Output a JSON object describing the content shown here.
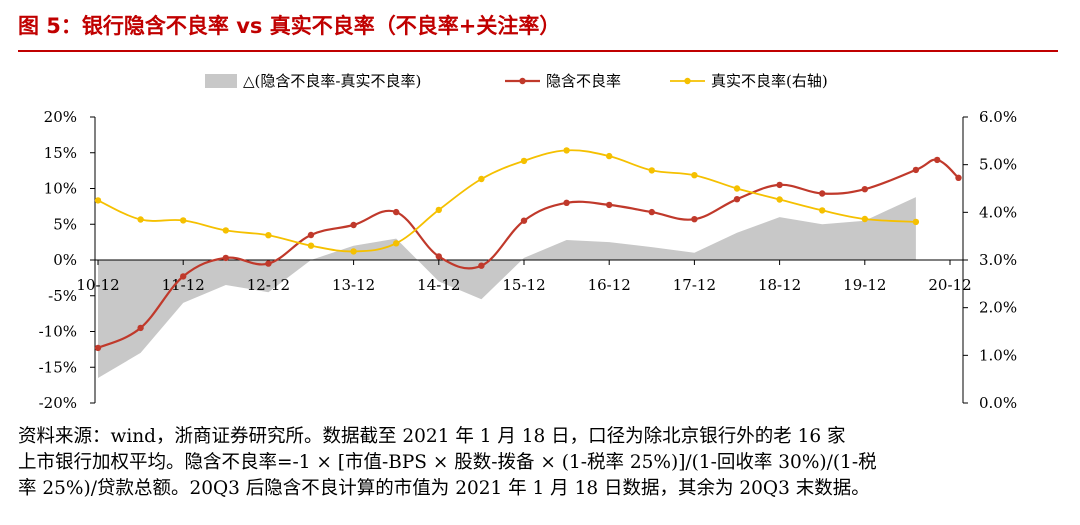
{
  "title": "图 5：银行隐含不良率 vs 真实不良率（不良率+关注率）",
  "source_lines": [
    "资料来源：wind，浙商证券研究所。数据截至 2021 年 1 月 18 日，口径为除北京银行外的老 16 家",
    "上市银行加权平均。隐含不良率=-1 × [市值-BPS × 股数-拨备 × (1-税率 25%)]/(1-回收率 30%)/(1-税",
    "率 25%)/贷款总额。20Q3 后隐含不良计算的市值为 2021 年 1 月 18 日数据，其余为 20Q3 末数据。"
  ],
  "chart_data": {
    "type": "line",
    "categories": [
      "10-12",
      "11-12",
      "12-12",
      "13-12",
      "14-12",
      "15-12",
      "16-12",
      "17-12",
      "18-12",
      "19-12",
      "20-12"
    ],
    "left_axis": {
      "ticks": [
        "20%",
        "15%",
        "10%",
        "5%",
        "0%",
        "-5%",
        "-10%",
        "-15%",
        "-20%"
      ],
      "range": [
        -20,
        20
      ]
    },
    "right_axis": {
      "ticks": [
        "6.0%",
        "5.0%",
        "4.0%",
        "3.0%",
        "2.0%",
        "1.0%",
        "0.0%"
      ],
      "range": [
        0,
        6
      ]
    },
    "series": [
      {
        "name": "△(隐含不良率-真实不良率)",
        "kind": "area",
        "axis": "left",
        "color": "#c8c8c8",
        "points": [
          [
            0,
            -16.5
          ],
          [
            0.5,
            -13
          ],
          [
            1,
            -6
          ],
          [
            1.5,
            -3.5
          ],
          [
            2,
            -4.5
          ],
          [
            2.5,
            0
          ],
          [
            3,
            2
          ],
          [
            3.5,
            3
          ],
          [
            4,
            -3
          ],
          [
            4.5,
            -5.5
          ],
          [
            5,
            0.3
          ],
          [
            5.5,
            2.8
          ],
          [
            6,
            2.5
          ],
          [
            6.5,
            1.8
          ],
          [
            7,
            1.0
          ],
          [
            7.5,
            3.8
          ],
          [
            8,
            6
          ],
          [
            8.5,
            5
          ],
          [
            9,
            5.5
          ],
          [
            9.6,
            8.8
          ]
        ]
      },
      {
        "name": "隐含不良率",
        "kind": "line",
        "axis": "left",
        "color": "#c0392b",
        "points": [
          [
            0,
            -12.3
          ],
          [
            0.5,
            -9.5
          ],
          [
            1,
            -2.3
          ],
          [
            1.5,
            0.3
          ],
          [
            2,
            -0.5
          ],
          [
            2.5,
            3.5
          ],
          [
            3,
            4.9
          ],
          [
            3.5,
            6.7
          ],
          [
            4,
            0.5
          ],
          [
            4.5,
            -0.8
          ],
          [
            5,
            5.5
          ],
          [
            5.5,
            8.0
          ],
          [
            6,
            7.7
          ],
          [
            6.5,
            6.7
          ],
          [
            7,
            5.7
          ],
          [
            7.5,
            8.5
          ],
          [
            8,
            10.5
          ],
          [
            8.5,
            9.3
          ],
          [
            9,
            9.9
          ],
          [
            9.6,
            12.6
          ],
          [
            9.85,
            14.0
          ],
          [
            10.1,
            11.5
          ]
        ]
      },
      {
        "name": "真实不良率(右轴)",
        "kind": "line",
        "axis": "right",
        "color": "#f5c000",
        "points": [
          [
            0,
            4.25
          ],
          [
            0.5,
            3.85
          ],
          [
            1,
            3.83
          ],
          [
            1.5,
            3.62
          ],
          [
            2,
            3.52
          ],
          [
            2.5,
            3.3
          ],
          [
            3,
            3.18
          ],
          [
            3.5,
            3.35
          ],
          [
            4,
            4.05
          ],
          [
            4.5,
            4.7
          ],
          [
            5,
            5.08
          ],
          [
            5.5,
            5.3
          ],
          [
            6,
            5.18
          ],
          [
            6.5,
            4.88
          ],
          [
            7,
            4.78
          ],
          [
            7.5,
            4.5
          ],
          [
            8,
            4.27
          ],
          [
            8.5,
            4.04
          ],
          [
            9,
            3.86
          ],
          [
            9.6,
            3.8
          ]
        ]
      }
    ]
  }
}
